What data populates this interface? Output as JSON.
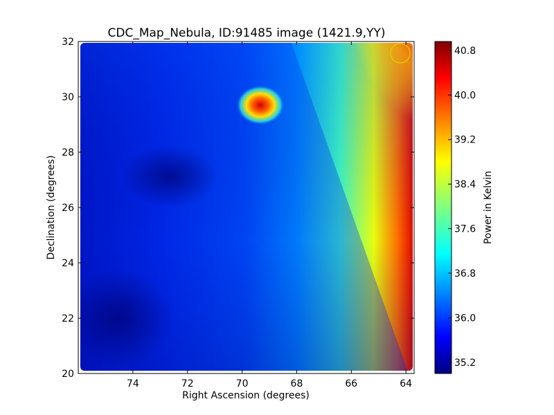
{
  "chart_data": {
    "type": "heatmap",
    "title": "CDC_Map_Nebula, ID:91485 image (1421.9,YY)",
    "xlabel": "Right Ascension (degrees)",
    "ylabel": "Declination (degrees)",
    "xlim": [
      76.0,
      63.7
    ],
    "ylim": [
      20.0,
      32.0
    ],
    "x_ticks": [
      "74",
      "72",
      "70",
      "68",
      "66",
      "64"
    ],
    "y_ticks": [
      "20",
      "22",
      "24",
      "26",
      "28",
      "30",
      "32"
    ],
    "colorbar": {
      "label": "Power in Kelvin",
      "range": [
        35.0,
        40.96
      ],
      "ticks": [
        "35.2",
        "36.0",
        "36.8",
        "37.6",
        "38.4",
        "39.2",
        "40.0",
        "40.8"
      ],
      "colormap": "jet"
    },
    "gradient": "temperature increases toward low RA (right side), highest at top-right",
    "features": [
      {
        "name": "hot spot",
        "ra": 69.3,
        "dec": 29.7,
        "peak_kelvin": 40.5
      },
      {
        "name": "marker circle",
        "ra": 64.2,
        "dec": 31.6
      }
    ],
    "data_range_kelvin": [
      35.2,
      40.8
    ]
  }
}
